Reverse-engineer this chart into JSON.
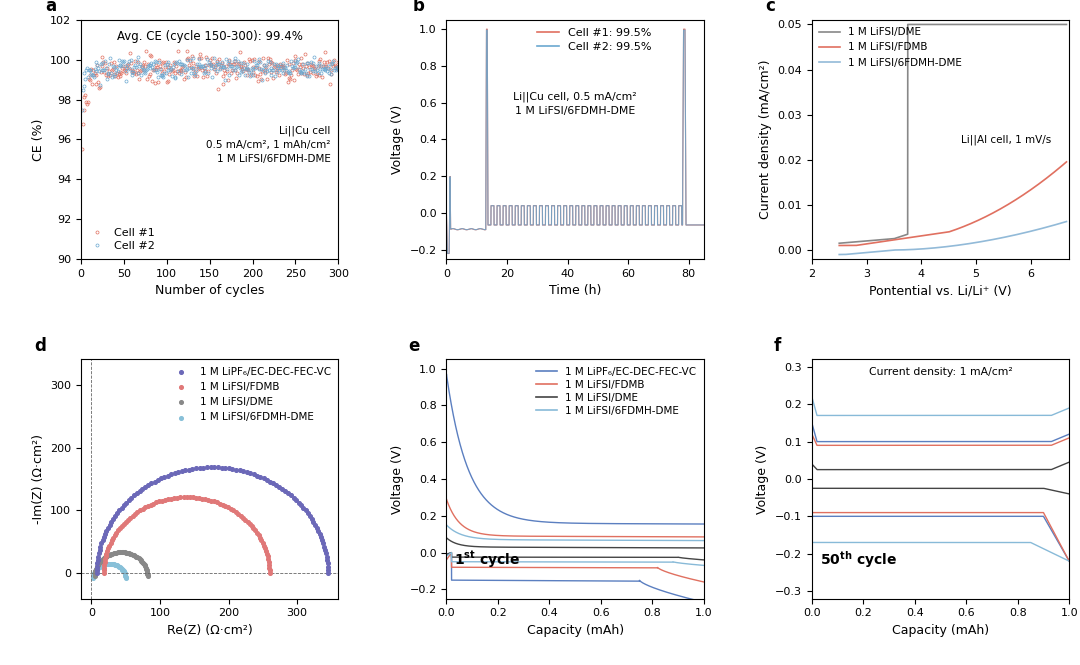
{
  "panel_a": {
    "title_text": "Avg. CE (cycle 150-300): 99.4%",
    "annotation": "Li||Cu cell\n0.5 mA/cm², 1 mAh/cm²\n1 M LiFSI/6FDMH-DME",
    "xlabel": "Number of cycles",
    "ylabel": "CE (%)",
    "ylim": [
      90,
      102
    ],
    "xlim": [
      0,
      300
    ],
    "yticks": [
      90,
      92,
      94,
      96,
      98,
      100,
      102
    ],
    "xticks": [
      0,
      50,
      100,
      150,
      200,
      250,
      300
    ],
    "cell1_color": "#e07060",
    "cell2_color": "#6ba8d0",
    "legend_labels": [
      "Cell #1",
      "Cell #2"
    ]
  },
  "panel_b": {
    "xlabel": "Time (h)",
    "ylabel": "Voltage (V)",
    "ylim": [
      -0.25,
      1.05
    ],
    "xlim": [
      0,
      85
    ],
    "yticks": [
      -0.2,
      0.0,
      0.2,
      0.4,
      0.6,
      0.8,
      1.0
    ],
    "xticks": [
      0,
      20,
      40,
      60,
      80
    ],
    "annotation1": "Cell #1: 99.5%",
    "annotation2": "Cell #2: 99.5%",
    "annotation3": "Li||Cu cell, 0.5 mA/cm²\n1 M LiFSI/6FDMH-DME",
    "cell1_color": "#e07060",
    "cell2_color": "#6ba8d0"
  },
  "panel_c": {
    "xlabel": "Pontential vs. Li/Li⁺ (V)",
    "ylabel": "Current density (mA/cm²)",
    "ylim": [
      -0.002,
      0.051
    ],
    "xlim": [
      2,
      6.7
    ],
    "yticks": [
      0.0,
      0.01,
      0.02,
      0.03,
      0.04,
      0.05
    ],
    "xticks": [
      2,
      3,
      4,
      5,
      6
    ],
    "annotation": "Li||Al cell, 1 mV/s",
    "colors": [
      "#888888",
      "#e07060",
      "#92bad8"
    ],
    "labels": [
      "1 M LiFSI/DME",
      "1 M LiFSI/FDMB",
      "1 M LiFSI/6FDMH-DME"
    ]
  },
  "panel_d": {
    "xlabel": "Re(Z) (Ω·cm²)",
    "ylabel": "-Im(Z) (Ω·cm²)",
    "ylim": [
      -40,
      340
    ],
    "xlim": [
      -15,
      360
    ],
    "yticks": [
      0,
      100,
      200,
      300
    ],
    "xticks": [
      0,
      100,
      200,
      300
    ],
    "colors": [
      "#6b68b8",
      "#e07878",
      "#888888",
      "#88c0d8"
    ],
    "labels": [
      "1 M LiPF₆/EC-DEC-FEC-VC",
      "1 M LiFSI/FDMB",
      "1 M LiFSI/DME",
      "1 M LiFSI/6FDMH-DME"
    ]
  },
  "panel_e": {
    "xlabel": "Capacity (mAh)",
    "ylabel": "Voltage (V)",
    "ylim": [
      -0.25,
      1.05
    ],
    "xlim": [
      0,
      1.0
    ],
    "yticks": [
      -0.2,
      0.0,
      0.2,
      0.4,
      0.6,
      0.8,
      1.0
    ],
    "xticks": [
      0.0,
      0.2,
      0.4,
      0.6,
      0.8,
      1.0
    ],
    "colors": [
      "#5b7fc0",
      "#e07060",
      "#444444",
      "#88bad8"
    ],
    "labels": [
      "1 M LiPF₆/EC-DEC-FEC-VC",
      "1 M LiFSI/FDMB",
      "1 M LiFSI/DME",
      "1 M LiFSI/6FDMH-DME"
    ]
  },
  "panel_f": {
    "xlabel": "Capacity (mAh)",
    "ylabel": "Voltage (V)",
    "ylim": [
      -0.32,
      0.32
    ],
    "xlim": [
      0,
      1.0
    ],
    "yticks": [
      -0.3,
      -0.2,
      -0.1,
      0.0,
      0.1,
      0.2,
      0.3
    ],
    "xticks": [
      0.0,
      0.2,
      0.4,
      0.6,
      0.8,
      1.0
    ],
    "annotation": "Current density: 1 mA/cm²",
    "colors": [
      "#5b7fc0",
      "#e07060",
      "#444444",
      "#88bad8"
    ],
    "labels": [
      "1 M LiPF₆/EC-DEC-FEC-VC",
      "1 M LiFSI/FDMB",
      "1 M LiFSI/DME",
      "1 M LiFSI/6FDMH-DME"
    ]
  },
  "fig_bg": "#ffffff",
  "label_fontsize": 9,
  "tick_fontsize": 8,
  "panel_label_fontsize": 12
}
